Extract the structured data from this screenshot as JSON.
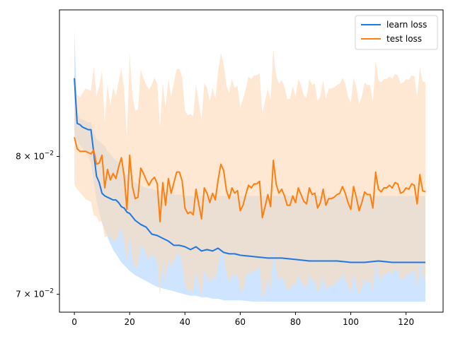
{
  "chart_data": {
    "type": "line",
    "title": "",
    "xlabel": "",
    "ylabel": "",
    "y_scale": "log",
    "xlim": [
      -5.4,
      133.4
    ],
    "ylim": [
      0.0688,
      0.0922
    ],
    "x_ticks": [
      0,
      20,
      40,
      60,
      80,
      100,
      120
    ],
    "x_tick_labels": [
      "0",
      "20",
      "40",
      "60",
      "80",
      "100",
      "120"
    ],
    "y_ticks": [
      0.08,
      0.07
    ],
    "y_tick_labels": [
      "8 × 10⁻²",
      "7 × 10⁻²"
    ],
    "y_tick_base": [
      "8 × 10",
      "7 × 10"
    ],
    "y_tick_exp": [
      "−2",
      "−2"
    ],
    "grid": false,
    "legend_position": "top-right",
    "series": [
      {
        "name": "learn loss",
        "color": "#1f77e4",
        "band_color": "#cce4ff",
        "x": [
          0,
          1,
          2,
          3,
          4,
          5,
          6,
          7,
          8,
          9,
          10,
          11,
          12,
          13,
          14,
          15,
          16,
          17,
          18,
          19,
          20,
          22,
          24,
          26,
          28,
          30,
          32,
          34,
          36,
          38,
          40,
          42,
          44,
          46,
          48,
          50,
          52,
          54,
          56,
          58,
          60,
          65,
          70,
          75,
          80,
          85,
          90,
          95,
          100,
          105,
          110,
          115,
          120,
          125,
          127
        ],
        "mean": [
          0.0863,
          0.0826,
          0.0825,
          0.0823,
          0.0822,
          0.0821,
          0.0821,
          0.0803,
          0.0785,
          0.078,
          0.0772,
          0.077,
          0.0769,
          0.0768,
          0.0767,
          0.0767,
          0.0765,
          0.0762,
          0.0761,
          0.0758,
          0.0757,
          0.0752,
          0.0749,
          0.0747,
          0.0742,
          0.0741,
          0.0739,
          0.0737,
          0.0734,
          0.0734,
          0.0733,
          0.0731,
          0.0733,
          0.073,
          0.0731,
          0.073,
          0.0732,
          0.0729,
          0.0728,
          0.0728,
          0.0727,
          0.0726,
          0.0725,
          0.0725,
          0.0724,
          0.0723,
          0.0723,
          0.0723,
          0.0722,
          0.0722,
          0.0723,
          0.0722,
          0.0722,
          0.0722,
          0.0722
        ],
        "lower": [
          0.0905,
          0.0835,
          0.083,
          0.0829,
          0.0828,
          0.0827,
          0.0827,
          0.0818,
          0.0814,
          0.0812,
          0.081,
          0.0808,
          0.0804,
          0.0802,
          0.0799,
          0.0797,
          0.0795,
          0.0792,
          0.0788,
          0.0786,
          0.0784,
          0.078,
          0.0778,
          0.0776,
          0.0775,
          0.0774,
          0.0773,
          0.0772,
          0.0771,
          0.0771,
          0.077,
          0.077,
          0.077,
          0.077,
          0.077,
          0.077,
          0.077,
          0.077,
          0.077,
          0.077,
          0.077,
          0.077,
          0.077,
          0.077,
          0.077,
          0.077,
          0.077,
          0.077,
          0.077,
          0.077,
          0.077,
          0.077,
          0.077,
          0.077,
          0.077
        ],
        "upper_note": "",
        "band_low": [
          0.0818,
          0.0812,
          0.0809,
          0.0806,
          0.0803,
          0.08,
          0.0795,
          0.078,
          0.0767,
          0.0758,
          0.075,
          0.0745,
          0.074,
          0.0735,
          0.0731,
          0.0728,
          0.0725,
          0.0722,
          0.072,
          0.0718,
          0.0716,
          0.0713,
          0.0711,
          0.0709,
          0.0707,
          0.0705,
          0.0704,
          0.0703,
          0.0702,
          0.0701,
          0.07,
          0.0699,
          0.0699,
          0.0698,
          0.0698,
          0.0697,
          0.0697,
          0.0696,
          0.0696,
          0.0696,
          0.0696,
          0.0695,
          0.0695,
          0.0695,
          0.0695,
          0.0695,
          0.0695,
          0.0695,
          0.0695,
          0.0695,
          0.0695,
          0.0695,
          0.0695,
          0.0695,
          0.0695
        ]
      },
      {
        "name": "test loss",
        "color": "#ff7f0e",
        "band_color": "#fdd9b5",
        "x": [
          0,
          1,
          2,
          3,
          4,
          5,
          6,
          7,
          8,
          9,
          10,
          11,
          12,
          13,
          14,
          15,
          16,
          17,
          18,
          19,
          20,
          21,
          22,
          23,
          24,
          25,
          26,
          27,
          28,
          29,
          30,
          31,
          32,
          33,
          34,
          35,
          36,
          37,
          38,
          39,
          40,
          41,
          42,
          43,
          44,
          45,
          46,
          47,
          48,
          49,
          50,
          51,
          52,
          53,
          54,
          55,
          56,
          57,
          58,
          59,
          60,
          61,
          62,
          63,
          64,
          65,
          66,
          67,
          68,
          69,
          70,
          71,
          72,
          73,
          74,
          75,
          76,
          77,
          78,
          79,
          80,
          81,
          82,
          83,
          84,
          85,
          86,
          87,
          88,
          89,
          90,
          91,
          92,
          93,
          94,
          95,
          96,
          97,
          98,
          99,
          100,
          101,
          102,
          103,
          104,
          105,
          106,
          107,
          108,
          109,
          110,
          111,
          112,
          113,
          114,
          115,
          116,
          117,
          118,
          119,
          120,
          121,
          122,
          123,
          124,
          125,
          126,
          127
        ],
        "mean": [
          0.0815,
          0.0806,
          0.0804,
          0.0804,
          0.0804,
          0.0803,
          0.0802,
          0.0805,
          0.0794,
          0.0795,
          0.0801,
          0.0776,
          0.079,
          0.0782,
          0.0787,
          0.0783,
          0.0792,
          0.0799,
          0.0785,
          0.076,
          0.0801,
          0.0777,
          0.0768,
          0.0769,
          0.0791,
          0.0787,
          0.0782,
          0.0778,
          0.0782,
          0.0784,
          0.0779,
          0.0751,
          0.078,
          0.0763,
          0.0783,
          0.0772,
          0.078,
          0.0788,
          0.0788,
          0.0781,
          0.0761,
          0.0757,
          0.0758,
          0.0756,
          0.0775,
          0.0764,
          0.0753,
          0.0776,
          0.0772,
          0.0765,
          0.0772,
          0.0767,
          0.0782,
          0.0794,
          0.0789,
          0.0774,
          0.0768,
          0.0776,
          0.0772,
          0.0774,
          0.0759,
          0.0763,
          0.0771,
          0.0778,
          0.0776,
          0.0779,
          0.0779,
          0.0781,
          0.0754,
          0.0762,
          0.0771,
          0.0762,
          0.0797,
          0.0779,
          0.0772,
          0.0775,
          0.077,
          0.0763,
          0.0763,
          0.077,
          0.0765,
          0.0776,
          0.0771,
          0.0766,
          0.0764,
          0.0776,
          0.0771,
          0.0772,
          0.0761,
          0.0765,
          0.0775,
          0.0763,
          0.0768,
          0.0768,
          0.0769,
          0.0771,
          0.0772,
          0.0777,
          0.0772,
          0.0765,
          0.076,
          0.0777,
          0.0769,
          0.0759,
          0.0765,
          0.0773,
          0.0771,
          0.0771,
          0.0761,
          0.0788,
          0.0775,
          0.0773,
          0.0776,
          0.0776,
          0.0778,
          0.0776,
          0.078,
          0.0779,
          0.0772,
          0.0773,
          0.0776,
          0.0775,
          0.0779,
          0.0778,
          0.0764,
          0.0786,
          0.0774,
          0.0773
        ],
        "band_low": [
          0.0801,
          0.0794,
          0.0792,
          0.0791,
          0.079,
          0.0789,
          0.0788,
          0.0786,
          0.0779,
          0.0778,
          0.0782,
          0.0762,
          0.0771,
          0.0766,
          0.0768,
          0.0765,
          0.0773,
          0.0779,
          0.0766,
          0.0745,
          0.0778,
          0.0757,
          0.0749,
          0.075,
          0.0769,
          0.0766,
          0.0761,
          0.0757,
          0.0761,
          0.0762,
          0.0757,
          0.0731,
          0.0758,
          0.0742,
          0.0761,
          0.0751,
          0.0758,
          0.0765,
          0.0765,
          0.0758,
          0.074,
          0.0736,
          0.0737,
          0.0735,
          0.0752,
          0.0742,
          0.0732,
          0.0753,
          0.0749,
          0.0743,
          0.0749,
          0.0745,
          0.0758,
          0.0769,
          0.0765,
          0.0751,
          0.0745,
          0.0752,
          0.0749,
          0.0751,
          0.0737,
          0.074,
          0.0748,
          0.0754,
          0.0752,
          0.0755,
          0.0755,
          0.0757,
          0.0732,
          0.0739,
          0.0748,
          0.0739,
          0.0772,
          0.0755,
          0.0748,
          0.0751,
          0.0746,
          0.074,
          0.074,
          0.0746,
          0.0742,
          0.0752,
          0.0747,
          0.0743,
          0.0741,
          0.0752,
          0.0747,
          0.0748,
          0.0738,
          0.0742,
          0.0751,
          0.074,
          0.0744,
          0.0744,
          0.0745,
          0.0747,
          0.0748,
          0.0753,
          0.0748,
          0.0742,
          0.0737,
          0.0753,
          0.0745,
          0.0736,
          0.0742,
          0.0749,
          0.0747,
          0.0747,
          0.0738,
          0.0763,
          0.0751,
          0.0749,
          0.0752,
          0.0752,
          0.0754,
          0.0752,
          0.0756,
          0.0755,
          0.0748,
          0.0749,
          0.0752,
          0.0751,
          0.0755,
          0.0754,
          0.0741,
          0.0762,
          0.075,
          0.0749
        ],
        "band_high": [
          0.0829,
          0.0818,
          0.0816,
          0.0817,
          0.0818,
          0.0817,
          0.0816,
          0.0824,
          0.0809,
          0.0812,
          0.082,
          0.079,
          0.0809,
          0.0798,
          0.0806,
          0.0801,
          0.0811,
          0.0819,
          0.0804,
          0.0775,
          0.0824,
          0.0797,
          0.0787,
          0.0788,
          0.0813,
          0.0808,
          0.0803,
          0.0799,
          0.0803,
          0.0806,
          0.0801,
          0.0771,
          0.0802,
          0.0784,
          0.0805,
          0.0793,
          0.0802,
          0.0811,
          0.0811,
          0.0804,
          0.0782,
          0.0778,
          0.0779,
          0.0777,
          0.0798,
          0.0786,
          0.0774,
          0.0799,
          0.0795,
          0.0787,
          0.0795,
          0.0789,
          0.0806,
          0.0819,
          0.0813,
          0.0797,
          0.0791,
          0.08,
          0.0795,
          0.0797,
          0.0781,
          0.0786,
          0.0794,
          0.0802,
          0.08,
          0.0803,
          0.0803,
          0.0805,
          0.0776,
          0.0785,
          0.0794,
          0.0785,
          0.0822,
          0.0803,
          0.0796,
          0.0799,
          0.0794,
          0.0786,
          0.0786,
          0.0794,
          0.0788,
          0.08,
          0.0795,
          0.0789,
          0.0787,
          0.08,
          0.0795,
          0.0796,
          0.0784,
          0.0788,
          0.0799,
          0.0786,
          0.0792,
          0.0792,
          0.0793,
          0.0795,
          0.0796,
          0.0801,
          0.0796,
          0.0788,
          0.0783,
          0.0801,
          0.0793,
          0.0782,
          0.0788,
          0.0797,
          0.0795,
          0.0795,
          0.0784,
          0.0813,
          0.0799,
          0.0797,
          0.08,
          0.08,
          0.0802,
          0.08,
          0.0804,
          0.0803,
          0.0796,
          0.0797,
          0.08,
          0.0799,
          0.0803,
          0.0802,
          0.0787,
          0.081,
          0.0798,
          0.0797
        ]
      }
    ]
  }
}
